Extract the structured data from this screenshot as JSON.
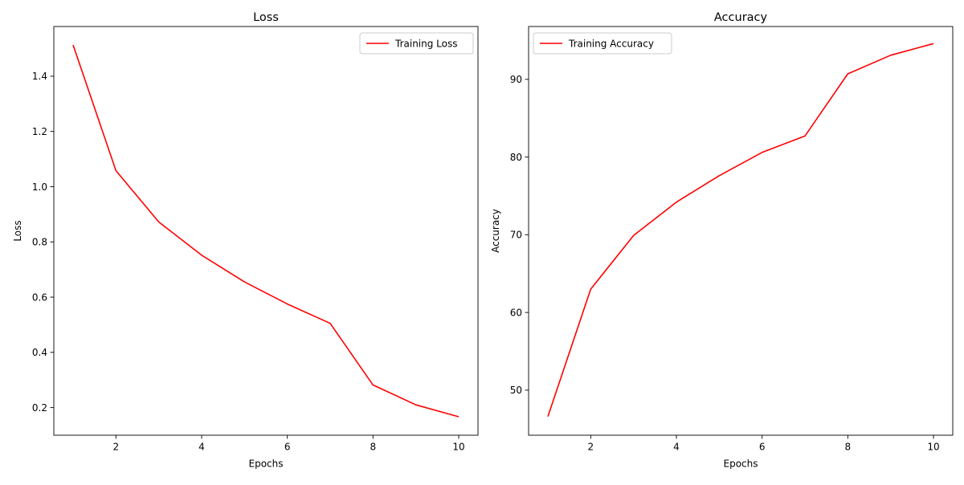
{
  "chart_data": [
    {
      "type": "line",
      "title": "Loss",
      "xlabel": "Epochs",
      "ylabel": "Loss",
      "x": [
        1,
        2,
        3,
        4,
        5,
        6,
        7,
        8,
        9,
        10
      ],
      "series": [
        {
          "name": "Training Loss",
          "color": "#ff0000",
          "values": [
            1.513,
            1.058,
            0.872,
            0.752,
            0.655,
            0.575,
            0.505,
            0.282,
            0.21,
            0.167
          ]
        }
      ],
      "xlim": [
        0.55,
        10.45
      ],
      "ylim": [
        0.1,
        1.58
      ],
      "xticks": [
        2,
        4,
        6,
        8,
        10
      ],
      "xtick_labels": [
        "2",
        "4",
        "6",
        "8",
        "10"
      ],
      "yticks": [
        0.2,
        0.4,
        0.6,
        0.8,
        1.0,
        1.2,
        1.4
      ],
      "ytick_labels": [
        "0.2",
        "0.4",
        "0.6",
        "0.8",
        "1.0",
        "1.2",
        "1.4"
      ],
      "legend": "top-right",
      "grid": false
    },
    {
      "type": "line",
      "title": "Accuracy",
      "xlabel": "Epochs",
      "ylabel": "Accuracy",
      "x": [
        1,
        2,
        3,
        4,
        5,
        6,
        7,
        8,
        9,
        10
      ],
      "series": [
        {
          "name": "Training Accuracy",
          "color": "#ff0000",
          "values": [
            46.6,
            63.0,
            69.9,
            74.2,
            77.6,
            80.6,
            82.7,
            90.7,
            93.1,
            94.6
          ]
        }
      ],
      "xlim": [
        0.55,
        10.45
      ],
      "ylim": [
        44.2,
        96.8
      ],
      "xticks": [
        2,
        4,
        6,
        8,
        10
      ],
      "xtick_labels": [
        "2",
        "4",
        "6",
        "8",
        "10"
      ],
      "yticks": [
        50,
        60,
        70,
        80,
        90
      ],
      "ytick_labels": [
        "50",
        "60",
        "70",
        "80",
        "90"
      ],
      "legend": "top-left",
      "grid": false
    }
  ]
}
